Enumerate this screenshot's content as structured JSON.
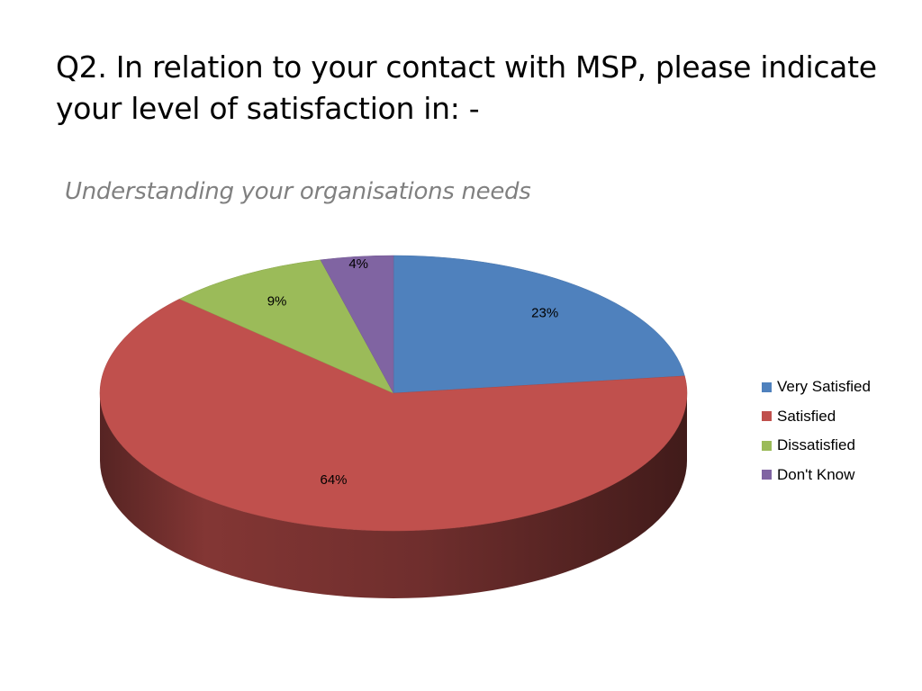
{
  "slide": {
    "title_line1": "Q2. In relation to your contact with MSP, please indicate",
    "title_line2": "your level of satisfaction in: -"
  },
  "chart_data": {
    "type": "pie",
    "title": "Understanding your organisations needs",
    "categories": [
      "Very Satisfied",
      "Satisfied",
      "Dissatisfied",
      "Don't Know"
    ],
    "values": [
      23,
      64,
      9,
      4
    ],
    "data_labels": [
      "23%",
      "64%",
      "9%",
      "4%"
    ],
    "colors": [
      "#4F81BD",
      "#C0504D",
      "#9BBB59",
      "#8064A2"
    ],
    "legend_position": "right",
    "style": "3d"
  }
}
